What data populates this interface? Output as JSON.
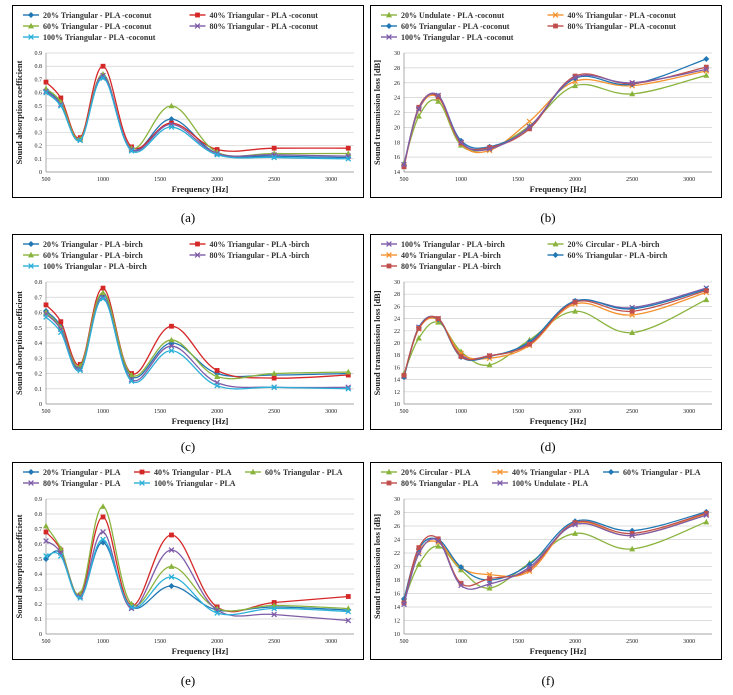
{
  "captions": [
    "(a)",
    "(b)",
    "(c)",
    "(d)",
    "(e)",
    "(f)"
  ],
  "chart_data": [
    {
      "type": "line",
      "xlabel": "Frequency [Hz]",
      "ylabel": "Sound absorption coefficient",
      "ylim": [
        0,
        0.9
      ],
      "ytick_step": 0.1,
      "ytick_decimals": 1,
      "x_ticks": [
        500,
        1000,
        1500,
        2000,
        2500,
        3000
      ],
      "x": [
        500,
        630,
        800,
        1000,
        1250,
        1600,
        2000,
        2500,
        3150
      ],
      "legend_columns": 2,
      "grid": "horizontal",
      "series": [
        {
          "name": "20% Triangular - PLA -coconut",
          "color": "#1f77b4",
          "marker": "diamond",
          "values": [
            0.62,
            0.52,
            0.25,
            0.72,
            0.17,
            0.4,
            0.14,
            0.12,
            0.11
          ]
        },
        {
          "name": "40% Triangular - PLA -coconut",
          "color": "#d62728",
          "marker": "square",
          "values": [
            0.68,
            0.56,
            0.26,
            0.8,
            0.19,
            0.37,
            0.17,
            0.18,
            0.18
          ]
        },
        {
          "name": "60% Triangular - PLA -coconut",
          "color": "#8ab33d",
          "marker": "triangle",
          "values": [
            0.63,
            0.53,
            0.25,
            0.74,
            0.18,
            0.5,
            0.15,
            0.14,
            0.14
          ]
        },
        {
          "name": "80% Triangular - PLA -coconut",
          "color": "#7e5ca8",
          "marker": "x",
          "values": [
            0.61,
            0.51,
            0.24,
            0.73,
            0.17,
            0.36,
            0.14,
            0.13,
            0.12
          ]
        },
        {
          "name": "100% Triangular - PLA -coconut",
          "color": "#2ab0d8",
          "marker": "x",
          "values": [
            0.6,
            0.5,
            0.24,
            0.71,
            0.16,
            0.34,
            0.13,
            0.11,
            0.1
          ]
        }
      ]
    },
    {
      "type": "line",
      "xlabel": "Frequency [Hz]",
      "ylabel": "Sound transmission loss [dB]",
      "ylim": [
        14,
        30
      ],
      "ytick_step": 2,
      "ytick_decimals": 0,
      "x_ticks": [
        500,
        1000,
        1500,
        2000,
        2500,
        3000
      ],
      "x": [
        500,
        630,
        800,
        1000,
        1250,
        1600,
        2000,
        2500,
        3150
      ],
      "legend_columns": 2,
      "grid": "horizontal",
      "series": [
        {
          "name": "20% Undulate - PLA -coconut",
          "color": "#8ab33d",
          "marker": "triangle",
          "values": [
            15.2,
            21.5,
            23.5,
            17.6,
            17.2,
            20.2,
            25.6,
            24.5,
            27.0
          ]
        },
        {
          "name": "40% Triangular - PLA -coconut",
          "color": "#f5922f",
          "marker": "x",
          "values": [
            14.8,
            22.4,
            24.0,
            17.8,
            16.9,
            20.8,
            26.2,
            25.6,
            27.6
          ]
        },
        {
          "name": "60% Triangular - PLA -coconut",
          "color": "#1f77b4",
          "marker": "diamond",
          "values": [
            14.9,
            22.6,
            24.2,
            18.2,
            17.4,
            20.0,
            26.6,
            25.8,
            29.2
          ]
        },
        {
          "name": "80% Triangular - PLA -coconut",
          "color": "#c0504d",
          "marker": "square",
          "values": [
            14.7,
            22.7,
            24.1,
            17.9,
            17.3,
            19.8,
            26.9,
            25.9,
            28.1
          ]
        },
        {
          "name": "100% Triangular - PLA -coconut",
          "color": "#7e5ca8",
          "marker": "x",
          "values": [
            15.0,
            22.5,
            24.3,
            18.0,
            17.1,
            20.1,
            26.7,
            26.0,
            27.8
          ]
        }
      ]
    },
    {
      "type": "line",
      "xlabel": "Frequency [Hz]",
      "ylabel": "Sound absorption coefficient",
      "ylim": [
        0,
        0.8
      ],
      "ytick_step": 0.1,
      "ytick_decimals": 1,
      "x_ticks": [
        500,
        1000,
        1500,
        2000,
        2500,
        3000
      ],
      "x": [
        500,
        630,
        800,
        1000,
        1250,
        1600,
        2000,
        2500,
        3150
      ],
      "legend_columns": 2,
      "grid": "horizontal",
      "series": [
        {
          "name": "20% Triangular - PLA -birch",
          "color": "#1f77b4",
          "marker": "diamond",
          "values": [
            0.61,
            0.51,
            0.24,
            0.72,
            0.18,
            0.4,
            0.2,
            0.19,
            0.2
          ]
        },
        {
          "name": "40% Triangular - PLA -birch",
          "color": "#d62728",
          "marker": "square",
          "values": [
            0.65,
            0.54,
            0.26,
            0.76,
            0.2,
            0.51,
            0.22,
            0.17,
            0.19
          ]
        },
        {
          "name": "60% Triangular - PLA -birch",
          "color": "#8ab33d",
          "marker": "triangle",
          "values": [
            0.6,
            0.5,
            0.25,
            0.73,
            0.19,
            0.42,
            0.18,
            0.2,
            0.21
          ]
        },
        {
          "name": "80% Triangular - PLA -birch",
          "color": "#7e5ca8",
          "marker": "x",
          "values": [
            0.59,
            0.49,
            0.23,
            0.7,
            0.16,
            0.38,
            0.14,
            0.11,
            0.11
          ]
        },
        {
          "name": "100% Triangular - PLA -birch",
          "color": "#2ab0d8",
          "marker": "x",
          "values": [
            0.57,
            0.47,
            0.22,
            0.69,
            0.15,
            0.35,
            0.12,
            0.11,
            0.1
          ]
        }
      ]
    },
    {
      "type": "line",
      "xlabel": "Frequency [Hz]",
      "ylabel": "Sound transmission loss [dB]",
      "ylim": [
        10,
        30
      ],
      "ytick_step": 2,
      "ytick_decimals": 0,
      "x_ticks": [
        500,
        1000,
        1500,
        2000,
        2500,
        3000
      ],
      "x": [
        500,
        630,
        800,
        1000,
        1250,
        1600,
        2000,
        2500,
        3150
      ],
      "legend_columns": 2,
      "grid": "horizontal",
      "series": [
        {
          "name": "100% Triangular - PLA -birch",
          "color": "#7e5ca8",
          "marker": "x",
          "values": [
            14.5,
            22.6,
            24.0,
            18.0,
            17.9,
            20.0,
            26.8,
            25.8,
            29.0
          ]
        },
        {
          "name": "20% Circular - PLA -birch",
          "color": "#8ab33d",
          "marker": "triangle",
          "values": [
            15.0,
            20.8,
            23.4,
            18.6,
            16.4,
            20.5,
            25.2,
            21.7,
            27.1
          ]
        },
        {
          "name": "40% Triangular - PLA -birch",
          "color": "#f5922f",
          "marker": "x",
          "values": [
            14.6,
            22.3,
            23.8,
            18.3,
            17.5,
            19.6,
            26.4,
            24.6,
            28.3
          ]
        },
        {
          "name": "60% Triangular - PLA -birch",
          "color": "#1f77b4",
          "marker": "diamond",
          "values": [
            14.4,
            22.5,
            23.9,
            17.7,
            17.8,
            20.2,
            26.9,
            25.6,
            28.8
          ]
        },
        {
          "name": "80% Triangular - PLA -birch",
          "color": "#c0504d",
          "marker": "square",
          "values": [
            14.7,
            22.4,
            24.0,
            17.8,
            17.9,
            19.8,
            26.7,
            25.2,
            28.6
          ]
        }
      ]
    },
    {
      "type": "line",
      "xlabel": "Frequency [Hz]",
      "ylabel": "Sound absorption coefficient",
      "ylim": [
        0,
        0.9
      ],
      "ytick_step": 0.1,
      "ytick_decimals": 1,
      "x_ticks": [
        500,
        1000,
        1500,
        2000,
        2500,
        3000
      ],
      "x": [
        500,
        630,
        800,
        1000,
        1250,
        1600,
        2000,
        2500,
        3150
      ],
      "legend_columns": 3,
      "grid": "horizontal",
      "series": [
        {
          "name": "20% Triangular - PLA",
          "color": "#1f77b4",
          "marker": "diamond",
          "values": [
            0.5,
            0.54,
            0.25,
            0.61,
            0.18,
            0.32,
            0.16,
            0.18,
            0.16
          ]
        },
        {
          "name": "40% Triangular - PLA",
          "color": "#d62728",
          "marker": "square",
          "values": [
            0.68,
            0.56,
            0.26,
            0.78,
            0.19,
            0.66,
            0.18,
            0.21,
            0.25
          ]
        },
        {
          "name": "60% Triangular - PLA",
          "color": "#8ab33d",
          "marker": "triangle",
          "values": [
            0.72,
            0.57,
            0.27,
            0.85,
            0.2,
            0.45,
            0.17,
            0.19,
            0.17
          ]
        },
        {
          "name": "80% Triangular - PLA",
          "color": "#7e5ca8",
          "marker": "x",
          "values": [
            0.62,
            0.54,
            0.25,
            0.68,
            0.17,
            0.56,
            0.16,
            0.13,
            0.09
          ]
        },
        {
          "name": "100% Triangular - PLA",
          "color": "#2ab0d8",
          "marker": "x",
          "values": [
            0.52,
            0.52,
            0.24,
            0.63,
            0.18,
            0.38,
            0.14,
            0.17,
            0.15
          ]
        }
      ]
    },
    {
      "type": "line",
      "xlabel": "Frequency [Hz]",
      "ylabel": "Sound transmission loss [dB]",
      "ylim": [
        10,
        30
      ],
      "ytick_step": 2,
      "ytick_decimals": 0,
      "x_ticks": [
        500,
        1000,
        1500,
        2000,
        2500,
        3000
      ],
      "x": [
        500,
        630,
        800,
        1000,
        1250,
        1600,
        2000,
        2500,
        3150
      ],
      "legend_columns": 3,
      "grid": "horizontal",
      "series": [
        {
          "name": "20% Circular - PLA",
          "color": "#8ab33d",
          "marker": "triangle",
          "values": [
            15.0,
            20.3,
            23.0,
            19.5,
            16.8,
            20.5,
            24.9,
            22.6,
            26.6
          ]
        },
        {
          "name": "40% Triangular - PLA",
          "color": "#f5922f",
          "marker": "x",
          "values": [
            14.8,
            22.2,
            23.6,
            19.8,
            18.8,
            19.3,
            26.4,
            24.6,
            27.8
          ]
        },
        {
          "name": "60% Triangular - PLA",
          "color": "#1f77b4",
          "marker": "diamond",
          "values": [
            15.2,
            22.6,
            24.0,
            19.9,
            18.0,
            20.3,
            26.7,
            25.3,
            28.1
          ]
        },
        {
          "name": "80% Triangular - PLA",
          "color": "#c0504d",
          "marker": "square",
          "values": [
            14.6,
            22.8,
            24.1,
            17.5,
            18.2,
            19.6,
            26.5,
            24.9,
            27.9
          ]
        },
        {
          "name": "100% Undulate - PLA",
          "color": "#7e5ca8",
          "marker": "x",
          "values": [
            14.4,
            21.9,
            23.8,
            17.2,
            17.4,
            19.9,
            26.2,
            24.6,
            27.6
          ]
        }
      ]
    }
  ]
}
